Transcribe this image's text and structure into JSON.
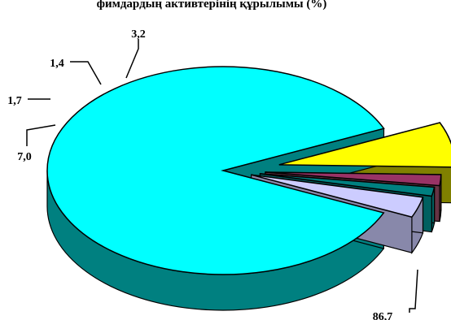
{
  "chart_data": {
    "type": "pie",
    "style": "3d-exploded",
    "title": "фимдардың активтерінің құрылымы (%)",
    "values": [
      86.7,
      7.0,
      1.7,
      1.4,
      3.2
    ],
    "labels": [
      "86,7",
      "7,0",
      "1,7",
      "1,4",
      "3,2"
    ],
    "colors": [
      "#00FFFF",
      "#FFFF00",
      "#993366",
      "#008080",
      "#CCCCFF"
    ],
    "side_colors": [
      "#008080",
      "#808000",
      "#663344",
      "#006060",
      "#8888AA"
    ],
    "legend": "none"
  }
}
